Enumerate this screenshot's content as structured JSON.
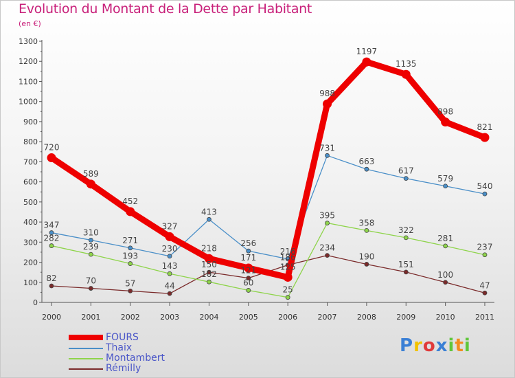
{
  "header": {
    "title": "Evolution du Montant de la Dette par Habitant",
    "subtitle": "(en €)"
  },
  "colors": {
    "title": "#c8207a",
    "legend_text": "#4a56c8",
    "axis_text": "#333333",
    "label_text": "#444444"
  },
  "logo": {
    "letters": [
      "P",
      "r",
      "o",
      "x",
      "i",
      "t",
      "i"
    ],
    "colors": [
      "#3a7fd5",
      "#f2c200",
      "#e03a3a",
      "#3a7fd5",
      "#5fc63a",
      "#f28c1e",
      "#5fc63a"
    ]
  },
  "chart_data": {
    "type": "line",
    "title": "Evolution du Montant de la Dette par Habitant",
    "subtitle": "(en €)",
    "categories": [
      "2000",
      "2001",
      "2002",
      "2003",
      "2004",
      "2005",
      "2006",
      "2007",
      "2008",
      "2009",
      "2010",
      "2011"
    ],
    "ylim": [
      0,
      1300
    ],
    "yticks": [
      "0",
      "100",
      "200",
      "300",
      "400",
      "500",
      "600",
      "700",
      "800",
      "900",
      "1000",
      "1100",
      "1200",
      "1300"
    ],
    "grid": false,
    "legend": "bottom-left",
    "series": [
      {
        "name": "FOURS",
        "color": "#ee0000",
        "values": [
          720,
          589,
          452,
          327,
          218,
          171,
          125,
          988,
          1197,
          1135,
          898,
          821
        ]
      },
      {
        "name": "Thaix",
        "color": "#4a8fc8",
        "values": [
          347,
          310,
          271,
          230,
          413,
          256,
          216,
          731,
          663,
          617,
          579,
          540
        ]
      },
      {
        "name": "Montambert",
        "color": "#8ed44a",
        "values": [
          282,
          239,
          193,
          143,
          102,
          60,
          25,
          395,
          358,
          322,
          281,
          237
        ]
      },
      {
        "name": "Rémilly",
        "color": "#7a2a2a",
        "values": [
          82,
          70,
          57,
          44,
          150,
          121,
          186,
          234,
          190,
          151,
          100,
          47
        ]
      }
    ]
  }
}
